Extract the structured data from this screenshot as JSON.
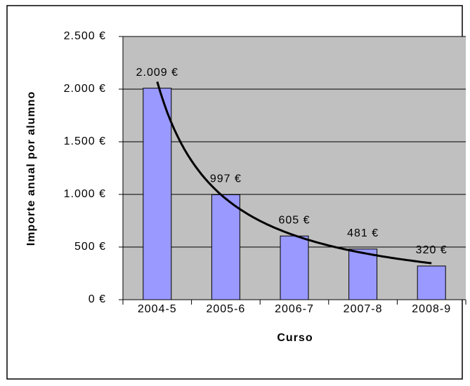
{
  "chart_data": {
    "type": "bar",
    "categories": [
      "2004-5",
      "2005-6",
      "2006-7",
      "2007-8",
      "2008-9"
    ],
    "values": [
      2009,
      997,
      605,
      481,
      320
    ],
    "value_labels": [
      "2.009 €",
      "997 €",
      "605 €",
      "481 €",
      "320 €"
    ],
    "color": "#9999ff",
    "x_label": "Curso",
    "y_label": "Importe anual por alumno",
    "ylim": [
      0,
      2500
    ],
    "yticks": [
      {
        "value": 0,
        "label": "0 €"
      },
      {
        "value": 500,
        "label": "500 €"
      },
      {
        "value": 1000,
        "label": "1.000 €"
      },
      {
        "value": 1500,
        "label": "1.500 €"
      },
      {
        "value": 2000,
        "label": "2.000 €"
      },
      {
        "value": 2500,
        "label": "2.500 €"
      }
    ],
    "grid": true,
    "trendline": "power"
  }
}
